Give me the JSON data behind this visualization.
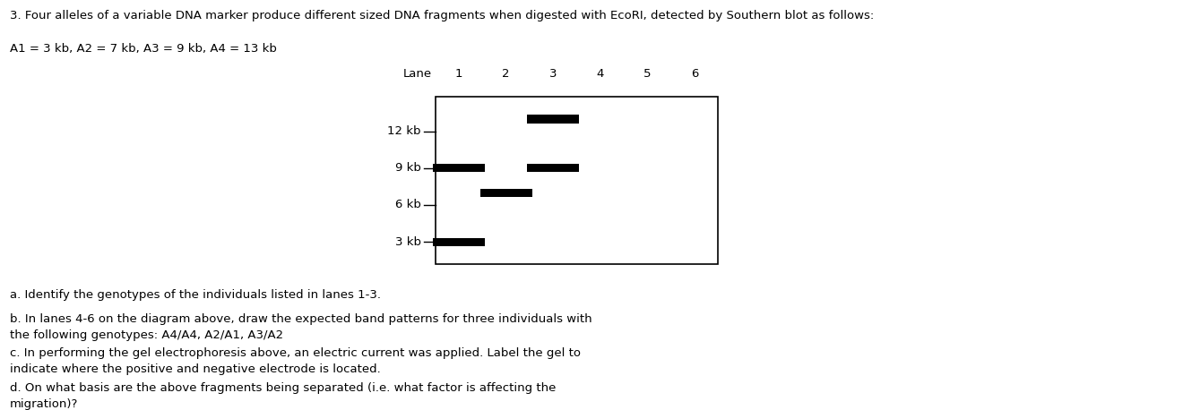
{
  "title_line1": "3. Four alleles of a variable DNA marker produce different sized DNA fragments when digested with EcoRI, detected by Southern blot as follows:",
  "title_line2": "A1 = 3 kb, A2 = 7 kb, A3 = 9 kb, A4 = 13 kb",
  "question_a": "a. Identify the genotypes of the individuals listed in lanes 1-3.",
  "question_b": "b. In lanes 4-6 on the diagram above, draw the expected band patterns for three individuals with\nthe following genotypes: A4/A4, A2/A1, A3/A2",
  "question_c": "c. In performing the gel electrophoresis above, an electric current was applied. Label the gel to\nindicate where the positive and negative electrode is located.",
  "question_d": "d. On what basis are the above fragments being separated (i.e. what factor is affecting the\nmigration)?",
  "kb_labels": [
    "12 kb",
    "9 kb",
    "6 kb",
    "3 kb"
  ],
  "kb_values": [
    12,
    9,
    6,
    3
  ],
  "bands": [
    {
      "lane": 1,
      "kb": 9
    },
    {
      "lane": 1,
      "kb": 3
    },
    {
      "lane": 2,
      "kb": 7
    },
    {
      "lane": 3,
      "kb": 13
    },
    {
      "lane": 3,
      "kb": 9
    }
  ],
  "band_color": "#000000",
  "background_color": "#ffffff",
  "font_size_title": 9.5,
  "font_size_labels": 9.5,
  "font_size_kb": 9.5,
  "font_size_questions": 9.5
}
